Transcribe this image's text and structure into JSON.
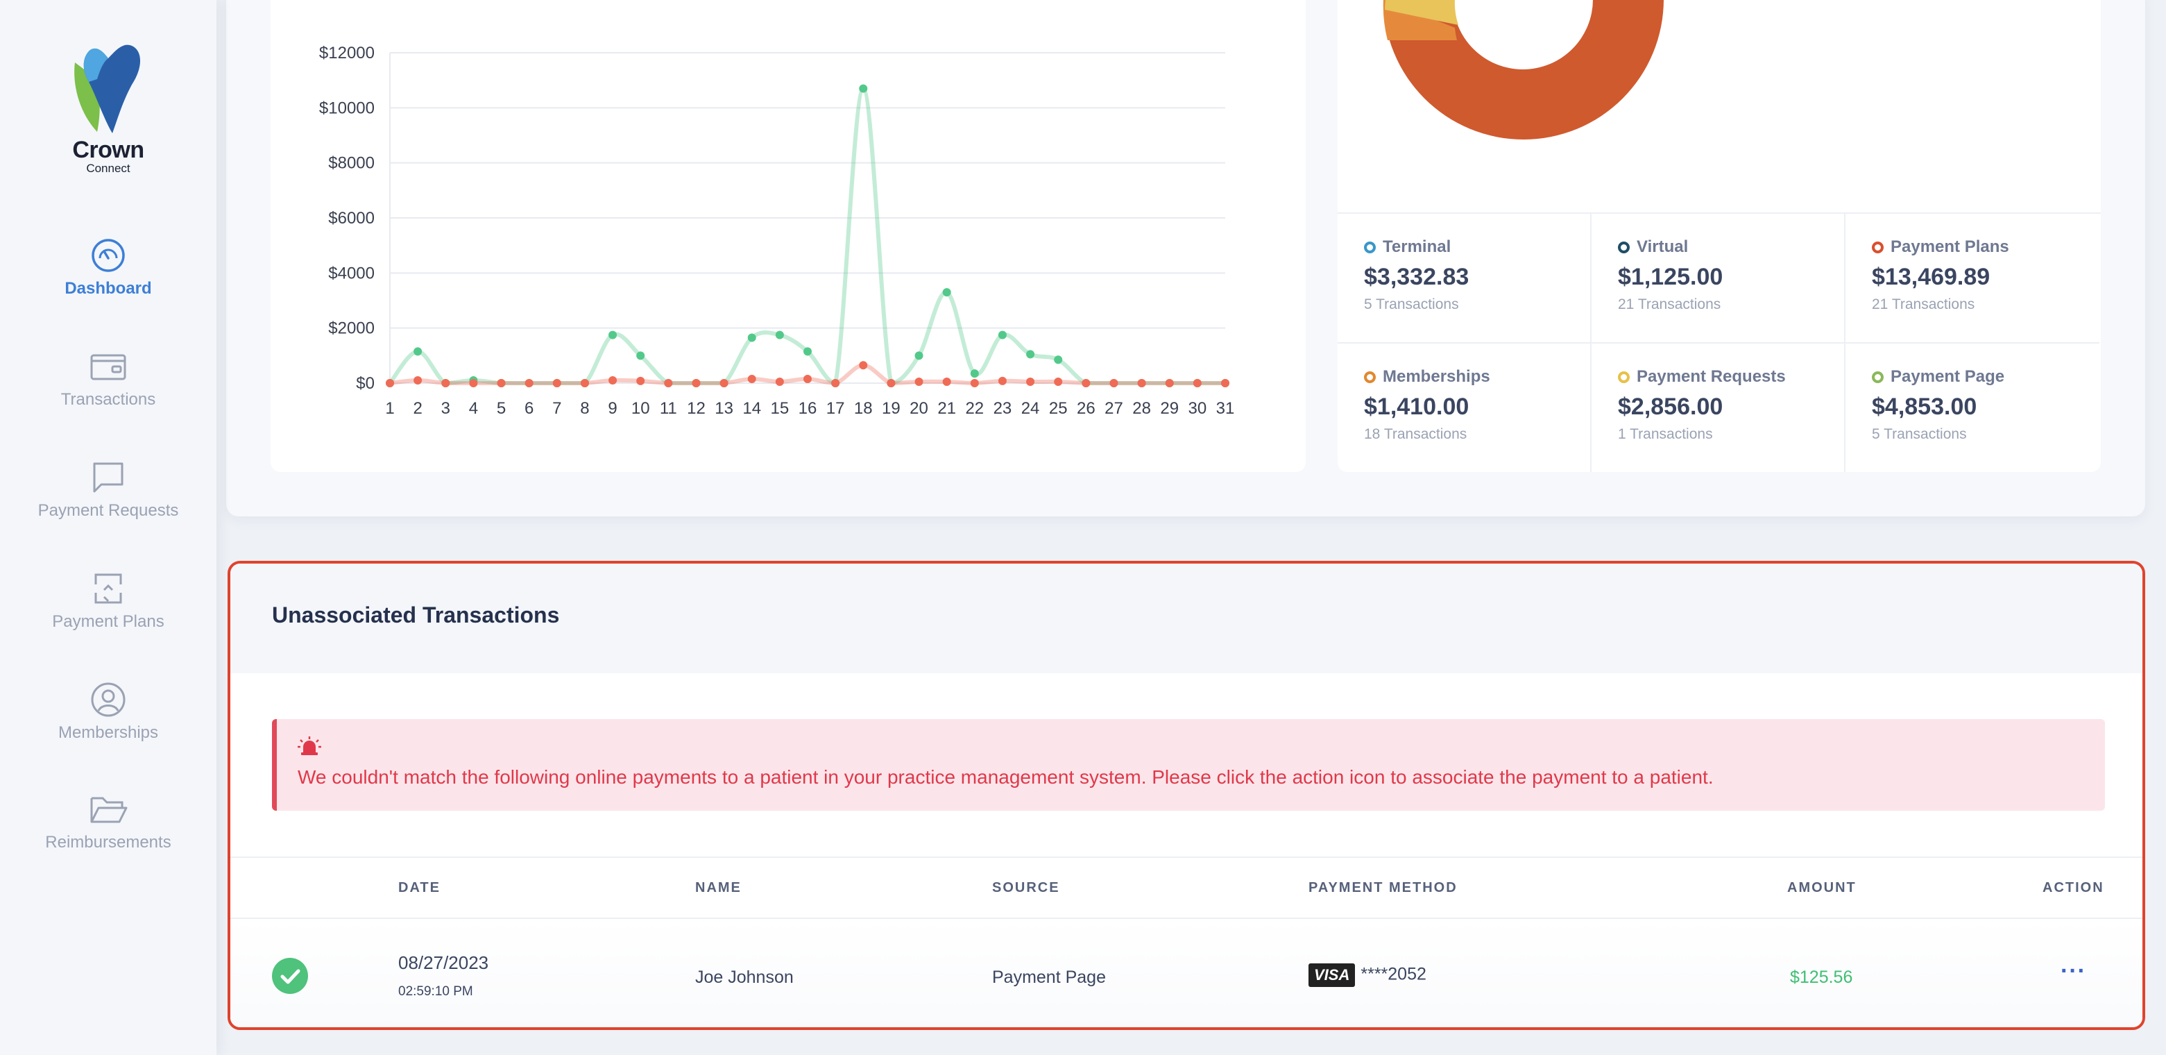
{
  "brand": {
    "name": "Crown",
    "sub": "Connect"
  },
  "sidebar": {
    "items": [
      {
        "label": "Dashboard",
        "icon": "dashboard-gauge-icon",
        "active": true
      },
      {
        "label": "Transactions",
        "icon": "wallet-icon"
      },
      {
        "label": "Payment Requests",
        "icon": "chat-bubble-icon"
      },
      {
        "label": "Payment Plans",
        "icon": "recurring-arrows-icon"
      },
      {
        "label": "Memberships",
        "icon": "user-circle-icon"
      },
      {
        "label": "Reimbursements",
        "icon": "folder-open-icon"
      }
    ]
  },
  "chart_data": {
    "type": "line",
    "x": [
      1,
      2,
      3,
      4,
      5,
      6,
      7,
      8,
      9,
      10,
      11,
      12,
      13,
      14,
      15,
      16,
      17,
      18,
      19,
      20,
      21,
      22,
      23,
      24,
      25,
      26,
      27,
      28,
      29,
      30,
      31
    ],
    "y_ticks": [
      "$0",
      "$2000",
      "$4000",
      "$6000",
      "$8000",
      "$10000",
      "$12000"
    ],
    "ylim": [
      0,
      12000
    ],
    "grid": true,
    "series": [
      {
        "color": "#52c98a",
        "values": [
          0,
          1150,
          0,
          100,
          0,
          0,
          0,
          0,
          1750,
          1000,
          0,
          0,
          0,
          1650,
          1750,
          1150,
          0,
          10700,
          0,
          1000,
          3300,
          350,
          1750,
          1050,
          850,
          0,
          0,
          0,
          0,
          0,
          0
        ]
      },
      {
        "color": "#ef6b55",
        "values": [
          0,
          100,
          0,
          0,
          0,
          0,
          0,
          0,
          100,
          80,
          0,
          0,
          0,
          150,
          50,
          150,
          0,
          650,
          0,
          50,
          50,
          0,
          80,
          50,
          50,
          0,
          0,
          0,
          0,
          0,
          0
        ]
      }
    ]
  },
  "donut": {
    "slices": [
      {
        "name": "Payment Plans",
        "color": "#cf5a2e"
      },
      {
        "name": "Memberships",
        "color": "#e58a3c"
      },
      {
        "name": "Payment Requests",
        "color": "#e8c45a"
      }
    ]
  },
  "stats": [
    {
      "label": "Terminal",
      "amount": "$3,332.83",
      "count": "5 Transactions",
      "color": "#3a97c9"
    },
    {
      "label": "Virtual",
      "amount": "$1,125.00",
      "count": "21 Transactions",
      "color": "#1f4f66"
    },
    {
      "label": "Payment Plans",
      "amount": "$13,469.89",
      "count": "21 Transactions",
      "color": "#d9502e"
    },
    {
      "label": "Memberships",
      "amount": "$1,410.00",
      "count": "18 Transactions",
      "color": "#e2882f"
    },
    {
      "label": "Payment Requests",
      "amount": "$2,856.00",
      "count": "1 Transactions",
      "color": "#e7c14a"
    },
    {
      "label": "Payment Page",
      "amount": "$4,853.00",
      "count": "5 Transactions",
      "color": "#8cb85a"
    }
  ],
  "unassociated": {
    "title": "Unassociated Transactions",
    "alert": "We couldn't match the following online payments to a patient in your practice management system. Please click the action icon to associate the payment to a patient.",
    "columns": {
      "date": "DATE",
      "name": "NAME",
      "source": "SOURCE",
      "method": "PAYMENT METHOD",
      "amount": "AMOUNT",
      "action": "ACTION"
    },
    "rows": [
      {
        "date": "08/27/2023",
        "time": "02:59:10 PM",
        "name": "Joe Johnson",
        "source": "Payment Page",
        "card_brand": "VISA",
        "card": "****2052",
        "amount": "$125.56"
      }
    ]
  }
}
